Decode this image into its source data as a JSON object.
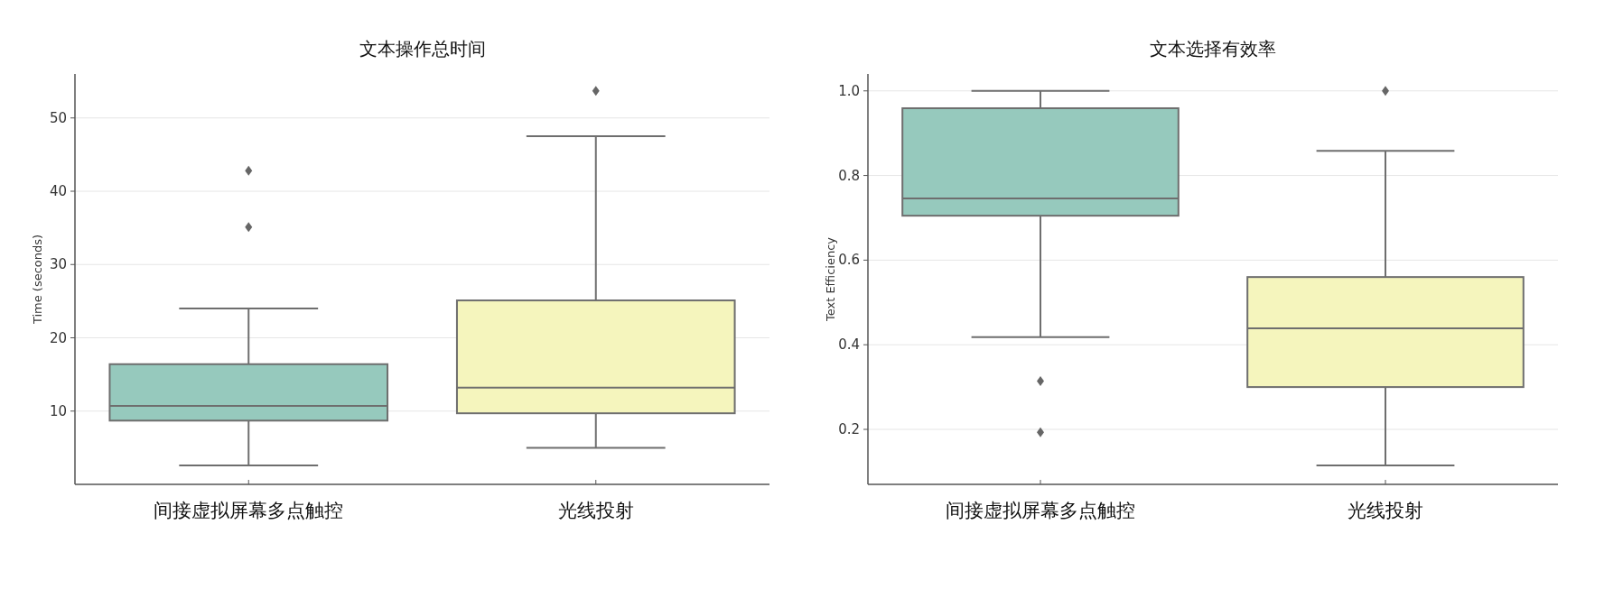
{
  "chart_data": [
    {
      "type": "box",
      "title": "文本操作总时间",
      "ylabel": "Time (seconds)",
      "categories": [
        "间接虚拟屏幕多点触控",
        "光线投射"
      ],
      "colors": [
        "#96c9bd",
        "#f5f5bd"
      ],
      "ylim": [
        0,
        56
      ],
      "yticks": [
        10,
        20,
        30,
        40,
        50
      ],
      "grid": "y",
      "marker": "diamond",
      "boxes": [
        {
          "low": 2.6,
          "q1": 8.7,
          "median": 10.7,
          "q3": 16.4,
          "high": 24.0,
          "outliers": [
            42.8,
            35.1
          ]
        },
        {
          "low": 5.0,
          "q1": 9.7,
          "median": 13.2,
          "q3": 25.1,
          "high": 47.5,
          "outliers": [
            53.7
          ]
        }
      ]
    },
    {
      "type": "box",
      "title": "文本选择有效率",
      "ylabel": "Text Efficiency",
      "categories": [
        "间接虚拟屏幕多点触控",
        "光线投射"
      ],
      "colors": [
        "#96c9bd",
        "#f5f5bd"
      ],
      "ylim": [
        0.07,
        1.04
      ],
      "yticks": [
        {
          "value": 0.2,
          "label": "0.2"
        },
        {
          "value": 0.4,
          "label": "0.4"
        },
        {
          "value": 0.6,
          "label": "0.6"
        },
        {
          "value": 0.8,
          "label": "0.8"
        },
        {
          "value": 1.0,
          "label": "1.0"
        }
      ],
      "grid": "y",
      "marker": "diamond",
      "boxes": [
        {
          "low": 0.418,
          "q1": 0.705,
          "median": 0.746,
          "q3": 0.959,
          "high": 1.0,
          "outliers": [
            0.314,
            0.193
          ]
        },
        {
          "low": 0.115,
          "q1": 0.3,
          "median": 0.439,
          "q3": 0.56,
          "high": 0.858,
          "outliers": [
            1.0
          ]
        }
      ]
    }
  ]
}
